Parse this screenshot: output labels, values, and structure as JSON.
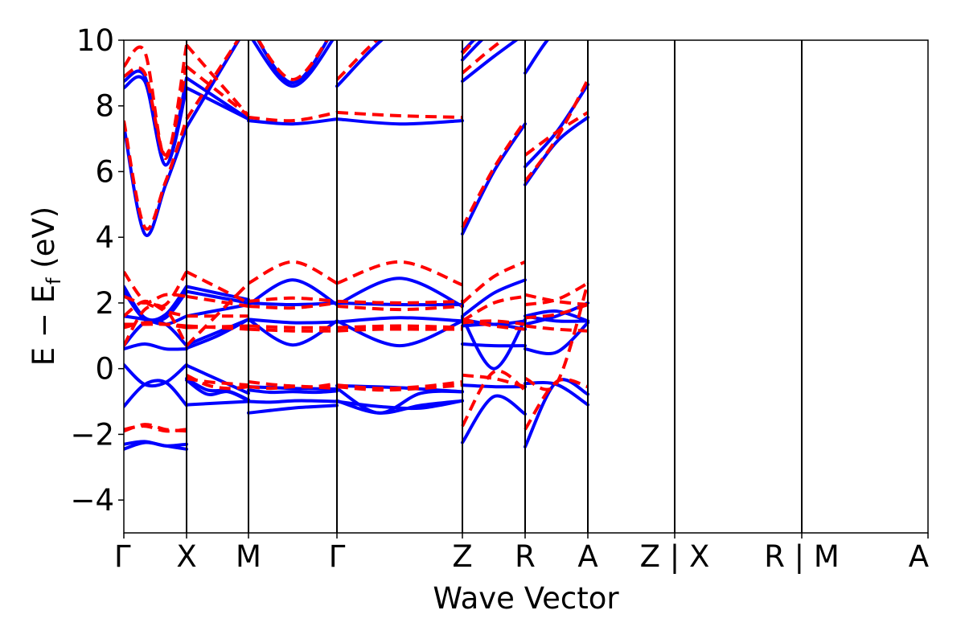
{
  "chart_data": {
    "type": "line",
    "xlabel": "Wave Vector",
    "ylabel": "E − E",
    "ylabel_sub": "f",
    "ylabel_unit": " (eV)",
    "ylim": [
      -5,
      10
    ],
    "yticks": [
      -4,
      -2,
      0,
      2,
      4,
      6,
      8,
      10
    ],
    "ytick_labels": [
      "−4",
      "−2",
      "0",
      "2",
      "4",
      "6",
      "8",
      "10"
    ],
    "xlim": [
      0,
      10
    ],
    "kpoints": [
      {
        "label": "Γ",
        "x": 0
      },
      {
        "label": "X",
        "x": 0.78
      },
      {
        "label": "M",
        "x": 1.55
      },
      {
        "label": "Γ",
        "x": 2.65
      },
      {
        "label": "Z",
        "x": 4.21
      },
      {
        "label": "R",
        "x": 4.99
      },
      {
        "label": "A",
        "x": 5.77
      },
      {
        "label": "Z | X",
        "x": 6.85
      },
      {
        "label": "R | M",
        "x": 8.43
      },
      {
        "label": "A",
        "x": 10
      }
    ],
    "segments": [
      {
        "x0": 0,
        "x1": 0.78
      },
      {
        "x0": 0.78,
        "x1": 1.55
      },
      {
        "x0": 1.55,
        "x1": 2.65
      },
      {
        "x0": 2.65,
        "x1": 4.21
      },
      {
        "x0": 4.21,
        "x1": 4.99
      },
      {
        "x0": 4.99,
        "x1": 5.77
      },
      {
        "x0": 5.77,
        "x1": 6.85
      },
      {
        "x0": 6.85,
        "x1": 8.43
      },
      {
        "x0": 8.43,
        "x1": 10
      }
    ],
    "series": [
      {
        "color": "#0000ff",
        "style": "solid",
        "bands": [
          [
            [
              -2.45,
              -2.25,
              -2.35,
              -2.45
            ],
            [
              -0.35,
              -0.78,
              -0.7,
              -0.98
            ],
            [
              -1.0,
              -1.02,
              -0.98,
              -0.98,
              -1.0
            ],
            [
              -0.98,
              -1.35,
              -1.12,
              -0.98
            ],
            [
              -2.25,
              -0.85,
              -1.38
            ],
            [
              -2.38,
              -0.4,
              -0.78
            ]
          ],
          [
            [
              -2.3,
              -2.22,
              -2.35,
              -2.3
            ],
            [
              -0.3,
              -0.65,
              -0.68,
              -0.95
            ],
            [
              -0.65,
              -0.72,
              -0.7,
              -0.72,
              -0.68
            ],
            [
              -0.6,
              -1.35,
              -0.75,
              -0.7
            ],
            [
              -0.5,
              -0.55,
              -0.55
            ],
            [
              -0.45,
              -0.48,
              -1.1
            ]
          ],
          [
            [
              -1.15,
              -0.48,
              -0.42,
              -1.12
            ],
            [
              -1.1,
              -1.0
            ],
            [
              -1.35,
              -1.2,
              -1.12
            ],
            [
              -1.0,
              -1.15,
              -1.2,
              -0.98
            ],
            [
              0.75,
              0.7,
              0.7
            ],
            [
              0.6,
              0.5,
              1.4
            ]
          ],
          [
            [
              0.12,
              -0.48,
              -0.42,
              0.12
            ],
            [
              0.1,
              -0.75
            ],
            [
              -0.55,
              -0.6,
              -0.62
            ],
            [
              -0.52,
              -0.58,
              -0.7
            ],
            [
              1.55,
              0.0,
              1.5
            ],
            [
              1.6,
              1.45,
              1.45
            ]
          ],
          [
            [
              0.6,
              0.75,
              0.6,
              0.6
            ],
            [
              0.62,
              1.0,
              1.5
            ],
            [
              1.5,
              1.4,
              1.42
            ],
            [
              1.42,
              1.55,
              1.45
            ],
            [
              1.5,
              1.35,
              1.45
            ],
            [
              1.35,
              1.6,
              2.0
            ]
          ],
          [
            [
              0.7,
              1.4,
              1.35,
              0.7
            ],
            [
              0.72,
              1.5
            ],
            [
              1.5,
              0.72,
              1.45
            ],
            [
              1.45,
              0.7,
              1.45
            ],
            [
              1.3,
              1.35,
              1.2
            ],
            [
              1.6,
              1.75,
              1.45
            ]
          ],
          [
            [
              1.6,
              1.5,
              1.35,
              1.6
            ],
            [
              1.6,
              1.95
            ],
            [
              1.95,
              2.7,
              1.95
            ],
            [
              1.95,
              2.75,
              1.9
            ],
            [
              1.6,
              2.3,
              2.7
            ],
            [
              6.15,
              7.2,
              8.65
            ]
          ],
          [
            [
              2.35,
              1.5,
              1.55,
              2.35
            ],
            [
              2.35,
              2.0
            ],
            [
              2.0,
              1.95,
              2.0
            ],
            [
              2.0,
              1.95,
              1.95
            ],
            [
              4.1,
              6.0,
              7.45
            ],
            [
              5.6,
              6.9,
              7.65
            ]
          ],
          [
            [
              2.5,
              1.55,
              1.65,
              2.5
            ],
            [
              2.5,
              2.1
            ],
            [
              7.55,
              7.45,
              7.6
            ],
            [
              7.6,
              7.45,
              7.55
            ],
            [
              8.75,
              9.5,
              10.2
            ],
            [
              9.0,
              10.3,
              10.5
            ]
          ],
          [
            [
              7.4,
              4.1,
              5.6,
              7.35
            ],
            [
              7.35,
              10.5
            ],
            [
              10.2,
              8.6,
              10.2
            ],
            [
              8.6,
              10.4,
              10.5
            ],
            [
              9.4,
              10.3,
              10.5
            ],
            [
              10.5,
              10.5,
              10.5
            ]
          ],
          [
            [
              8.55,
              8.75,
              6.2,
              8.55
            ],
            [
              8.55,
              7.6
            ],
            [
              10.5,
              8.7,
              10.5
            ],
            [
              10.5,
              10.5,
              10.5
            ],
            [
              9.65,
              10.5,
              10.5
            ],
            [
              10.5,
              10.5,
              10.5
            ]
          ],
          [
            [
              8.75,
              8.9,
              6.2,
              8.85
            ],
            [
              8.85,
              7.6
            ],
            [
              10.5,
              10.5,
              10.5
            ],
            [
              10.5,
              10.5,
              10.5
            ],
            [
              10.5,
              10.5,
              10.5
            ],
            [
              10.5,
              10.5,
              10.5
            ]
          ]
        ]
      },
      {
        "color": "#ff0000",
        "style": "dashed",
        "bands": [
          [
            [
              -1.9,
              -1.7,
              -1.85,
              -1.9
            ],
            [
              -0.3,
              -0.4,
              -0.45,
              -0.5
            ],
            [
              -0.55,
              -0.6,
              -0.55,
              -0.55,
              -0.45
            ],
            [
              -0.5,
              -0.6,
              -0.55,
              -0.4
            ],
            [
              -1.75,
              -0.1,
              -0.65
            ],
            [
              -1.85,
              -0.4,
              -0.55
            ]
          ],
          [
            [
              -1.85,
              -1.75,
              -1.9,
              -1.85
            ],
            [
              -0.2,
              -0.5,
              -0.6,
              -0.55
            ],
            [
              -0.4,
              -0.5,
              -0.55,
              -0.6
            ],
            [
              -0.55,
              -0.65,
              -0.6,
              -0.5
            ],
            [
              -0.2,
              -0.3,
              -0.55
            ],
            [
              -0.3,
              -0.45,
              2.6
            ]
          ],
          [
            [
              1.35,
              1.35,
              1.35,
              1.3
            ],
            [
              1.3,
              1.2
            ],
            [
              1.2,
              1.15,
              1.15
            ],
            [
              1.15,
              1.2,
              1.2,
              1.2
            ],
            [
              1.5,
              1.3,
              1.2
            ],
            [
              1.3,
              1.2,
              1.15
            ]
          ],
          [
            [
              1.25,
              1.4,
              1.35,
              1.25
            ],
            [
              1.25,
              1.3
            ],
            [
              1.3,
              1.25,
              1.25
            ],
            [
              1.25,
              1.3,
              1.25
            ],
            [
              1.4,
              1.45,
              1.35
            ],
            [
              1.55,
              1.65,
              1.95
            ]
          ],
          [
            [
              0.7,
              1.8,
              1.8,
              0.7
            ],
            [
              0.7,
              2.6
            ],
            [
              2.6,
              3.25,
              2.6
            ],
            [
              2.6,
              3.25,
              2.55
            ],
            [
              1.45,
              2.0,
              2.2
            ],
            [
              2.25,
              2.05,
              1.95
            ]
          ],
          [
            [
              1.6,
              2.05,
              1.75,
              1.6
            ],
            [
              1.6,
              1.6
            ],
            [
              2.05,
              2.15,
              2.05
            ],
            [
              2.05,
              2.0,
              2.05
            ],
            [
              2.0,
              2.8,
              3.25
            ],
            [
              1.95,
              2.1,
              2.6
            ]
          ],
          [
            [
              2.2,
              2.0,
              2.25,
              2.2
            ],
            [
              2.2,
              1.9
            ],
            [
              1.9,
              1.85,
              2.0
            ],
            [
              1.9,
              1.8,
              1.9
            ],
            [
              4.3,
              6.1,
              7.55
            ],
            [
              6.5,
              7.2,
              7.8
            ]
          ],
          [
            [
              2.95,
              2.05,
              1.95,
              2.95
            ],
            [
              2.95,
              2.0
            ],
            [
              7.65,
              7.55,
              7.8
            ],
            [
              7.8,
              7.7,
              7.65
            ],
            [
              9.0,
              9.8,
              10.5
            ],
            [
              5.7,
              7.0,
              8.8
            ]
          ],
          [
            [
              7.55,
              4.3,
              5.7,
              7.6
            ],
            [
              7.6,
              10.5
            ],
            [
              10.5,
              8.8,
              10.5
            ],
            [
              8.8,
              10.5,
              10.5
            ],
            [
              9.6,
              10.5,
              10.5
            ],
            [
              10.5,
              10.5,
              10.5
            ]
          ],
          [
            [
              8.9,
              9.0,
              6.5,
              9.2
            ],
            [
              9.2,
              7.7
            ],
            [
              10.5,
              10.5,
              10.5
            ],
            [
              10.5,
              10.5,
              10.5
            ],
            [
              10.5,
              10.5,
              10.5
            ],
            [
              10.5,
              10.5,
              10.5
            ]
          ],
          [
            [
              9.2,
              9.65,
              6.4,
              9.85
            ],
            [
              9.85,
              7.7
            ],
            [
              10.5,
              10.5,
              10.5
            ],
            [
              10.5,
              10.5,
              10.5
            ],
            [
              10.5,
              10.5,
              10.5
            ],
            [
              10.5,
              10.5,
              10.5
            ]
          ]
        ]
      }
    ]
  }
}
